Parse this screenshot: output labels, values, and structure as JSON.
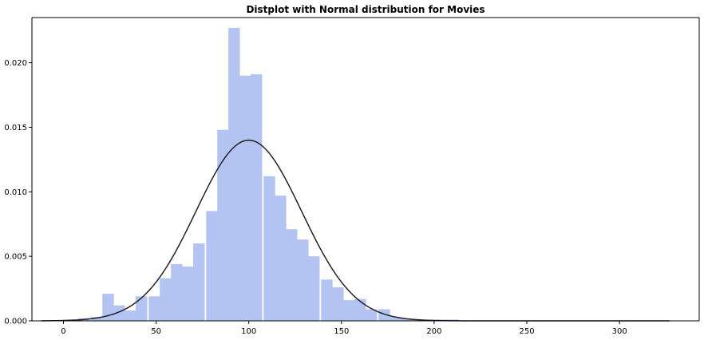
{
  "chart_data": {
    "type": "histogram",
    "title": "Distplot with Normal distribution for Movies",
    "xlabel": "",
    "ylabel": "",
    "xlim": [
      -17,
      343
    ],
    "ylim": [
      0,
      0.0235
    ],
    "bin_width": 6.2,
    "histogram": {
      "color": "#b3c3f2",
      "bin_left_edges": [
        2,
        8,
        15,
        21,
        27,
        33,
        39,
        46,
        52,
        58,
        64,
        70,
        77,
        83,
        89,
        95,
        101,
        108,
        114,
        120,
        126,
        132,
        139,
        145,
        151,
        157,
        163,
        170,
        176,
        182,
        188,
        194,
        201,
        207
      ],
      "values": [
        0.0001,
        0.0002,
        0.0003,
        0.0021,
        0.0012,
        0.0008,
        0.0019,
        0.0019,
        0.0033,
        0.0044,
        0.0042,
        0.006,
        0.0085,
        0.0148,
        0.0227,
        0.019,
        0.0191,
        0.0112,
        0.0097,
        0.0071,
        0.0063,
        0.005,
        0.0032,
        0.0026,
        0.0016,
        0.0017,
        0.0009,
        0.0009,
        0.0003,
        0.0002,
        0.0001,
        0.0001,
        0.0001,
        0.0001
      ]
    },
    "normal_fit": {
      "label": "Normal distribution",
      "mean": 100,
      "std": 28.5,
      "x_range": [
        -12,
        327
      ],
      "color": "#222222"
    },
    "x_ticks": [
      0,
      50,
      100,
      150,
      200,
      250,
      300
    ],
    "y_ticks": [
      0.0,
      0.005,
      0.01,
      0.015,
      0.02
    ],
    "x_tick_labels": [
      "0",
      "50",
      "100",
      "150",
      "200",
      "250",
      "300"
    ],
    "y_tick_labels": [
      "0.000",
      "0.005",
      "0.010",
      "0.015",
      "0.020"
    ]
  }
}
